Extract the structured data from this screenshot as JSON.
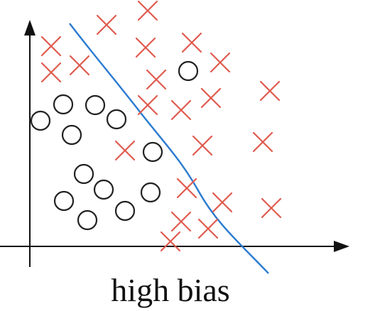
{
  "caption": "high bias"
}
